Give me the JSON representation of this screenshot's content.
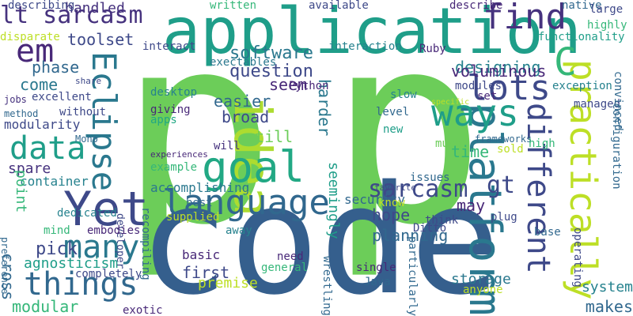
{
  "words": [
    {
      "text": "p",
      "color": "#6ccd59"
    },
    {
      "text": "p",
      "color": "#6ccd59"
    },
    {
      "text": "code",
      "color": "#355f8d"
    },
    {
      "text": "application",
      "color": "#1f9e89"
    },
    {
      "text": "platform",
      "color": "#2a788e"
    },
    {
      "text": "idea",
      "color": "#addc30"
    },
    {
      "text": "Eclipse",
      "color": "#2a788e"
    },
    {
      "text": "practically",
      "color": "#bddf26"
    },
    {
      "text": "different",
      "color": "#3e4989"
    },
    {
      "text": "language",
      "color": "#31688e"
    },
    {
      "text": "Yet",
      "color": "#3e4989"
    },
    {
      "text": "goal",
      "color": "#22a884"
    },
    {
      "text": "C",
      "color": "#35b779"
    },
    {
      "text": "lots",
      "color": "#3e4989"
    },
    {
      "text": "ways",
      "color": "#1f9e89"
    },
    {
      "text": "find",
      "color": "#46327e"
    },
    {
      "text": "em",
      "color": "#482878"
    },
    {
      "text": "data",
      "color": "#1f9e89"
    },
    {
      "text": "things",
      "color": "#31688e"
    },
    {
      "text": "many",
      "color": "#2a788e"
    },
    {
      "text": "sarcasm",
      "color": "#3e4989"
    },
    {
      "text": "gt",
      "color": "#3e4989"
    },
    {
      "text": "lt sarcasm",
      "color": "#46327e"
    },
    {
      "text": "software",
      "color": "#2a788e"
    },
    {
      "text": "question",
      "color": "#3e4989"
    },
    {
      "text": "seem",
      "color": "#482878"
    },
    {
      "text": "easier",
      "color": "#31688e"
    },
    {
      "text": "broad",
      "color": "#3e4989"
    },
    {
      "text": "still",
      "color": "#6ccd59"
    },
    {
      "text": "harder",
      "color": "#2a788e"
    },
    {
      "text": "designing",
      "color": "#26828e"
    },
    {
      "text": "voluminous",
      "color": "#482878"
    },
    {
      "text": "time",
      "color": "#35b779"
    },
    {
      "text": "toolset",
      "color": "#3e4989"
    },
    {
      "text": "phase",
      "color": "#31688e"
    },
    {
      "text": "come",
      "color": "#2a788e"
    },
    {
      "text": "modularity",
      "color": "#3e4989"
    },
    {
      "text": "spare",
      "color": "#46327e"
    },
    {
      "text": "container",
      "color": "#26828e"
    },
    {
      "text": "point",
      "color": "#35b779"
    },
    {
      "text": "pick",
      "color": "#3e4989"
    },
    {
      "text": "agnosticism",
      "color": "#1f9e89"
    },
    {
      "text": "cross",
      "color": "#31688e"
    },
    {
      "text": "modular",
      "color": "#35b779"
    },
    {
      "text": "accomplishing",
      "color": "#2a788e"
    },
    {
      "text": "seemingly",
      "color": "#1f9e89"
    },
    {
      "text": "may",
      "color": "#482878"
    },
    {
      "text": "hope",
      "color": "#3e4989"
    },
    {
      "text": "planning",
      "color": "#31688e"
    },
    {
      "text": "first",
      "color": "#3e4989"
    },
    {
      "text": "premise",
      "color": "#bddf26"
    },
    {
      "text": "basic",
      "color": "#482878"
    },
    {
      "text": "storage",
      "color": "#2a788e"
    },
    {
      "text": "makes",
      "color": "#31688e"
    },
    {
      "text": "system",
      "color": "#26828e"
    },
    {
      "text": "security",
      "color": "#31688e"
    },
    {
      "text": "handled",
      "color": "#46327e"
    },
    {
      "text": "describing",
      "color": "#3e4989"
    },
    {
      "text": "written",
      "color": "#35b779"
    },
    {
      "text": "available",
      "color": "#3e4989"
    },
    {
      "text": "describe",
      "color": "#482878"
    },
    {
      "text": "native",
      "color": "#31688e"
    },
    {
      "text": "large",
      "color": "#3e4989"
    },
    {
      "text": "highly",
      "color": "#35b779"
    },
    {
      "text": "functionality",
      "color": "#1f9e89"
    },
    {
      "text": "disparate",
      "color": "#bddf26"
    },
    {
      "text": "interact",
      "color": "#3e4989"
    },
    {
      "text": "interaction",
      "color": "#26828e"
    },
    {
      "text": "Ruby",
      "color": "#482878"
    },
    {
      "text": "exectables",
      "color": "#2a788e"
    },
    {
      "text": "share",
      "color": "#3e4989"
    },
    {
      "text": "desktop",
      "color": "#26828e"
    },
    {
      "text": "jobs",
      "color": "#46327e"
    },
    {
      "text": "excellent",
      "color": "#3e4989"
    },
    {
      "text": "method",
      "color": "#31688e"
    },
    {
      "text": "without",
      "color": "#3e4989"
    },
    {
      "text": "Mono",
      "color": "#31688e"
    },
    {
      "text": "giving",
      "color": "#482878"
    },
    {
      "text": "apps",
      "color": "#22a884"
    },
    {
      "text": "Python",
      "color": "#482878"
    },
    {
      "text": "slow",
      "color": "#26828e"
    },
    {
      "text": "level",
      "color": "#31688e"
    },
    {
      "text": "new",
      "color": "#1f9e89"
    },
    {
      "text": "modules",
      "color": "#3e4989"
    },
    {
      "text": "set",
      "color": "#482878"
    },
    {
      "text": "specific",
      "color": "#bddf26"
    },
    {
      "text": "exception",
      "color": "#26828e"
    },
    {
      "text": "managed",
      "color": "#3e4989"
    },
    {
      "text": "convinced",
      "color": "#31688e"
    },
    {
      "text": "configuration",
      "color": "#31688e"
    },
    {
      "text": "frameworks",
      "color": "#31688e"
    },
    {
      "text": "much",
      "color": "#6ccd59"
    },
    {
      "text": "sold",
      "color": "#bddf26"
    },
    {
      "text": "high",
      "color": "#35b779"
    },
    {
      "text": "will",
      "color": "#46327e"
    },
    {
      "text": "experiences",
      "color": "#482878"
    },
    {
      "text": "developer",
      "color": "#3e4989"
    },
    {
      "text": "example",
      "color": "#35b779"
    },
    {
      "text": "best",
      "color": "#31688e"
    },
    {
      "text": "issues",
      "color": "#31688e"
    },
    {
      "text": "favorite",
      "color": "#3e4989"
    },
    {
      "text": "know",
      "color": "#bddf26"
    },
    {
      "text": "think",
      "color": "#3e4989"
    },
    {
      "text": "plug",
      "color": "#3e4989"
    },
    {
      "text": "base",
      "color": "#31688e"
    },
    {
      "text": "preference",
      "color": "#31688e"
    },
    {
      "text": "dedicated",
      "color": "#26828e"
    },
    {
      "text": "supplied",
      "color": "#bddf26"
    },
    {
      "text": "recompiling",
      "color": "#31688e"
    },
    {
      "text": "mind",
      "color": "#35b779"
    },
    {
      "text": "embodies",
      "color": "#482878"
    },
    {
      "text": "away",
      "color": "#26828e"
    },
    {
      "text": "Ditto",
      "color": "#3e4989"
    },
    {
      "text": "operating",
      "color": "#3e4989"
    },
    {
      "text": "completely",
      "color": "#3e4989"
    },
    {
      "text": "need",
      "color": "#482878"
    },
    {
      "text": "general",
      "color": "#35b779"
    },
    {
      "text": "single",
      "color": "#482878"
    },
    {
      "text": "Java",
      "color": "#31688e"
    },
    {
      "text": "particularly",
      "color": "#31688e"
    },
    {
      "text": "anyone",
      "color": "#bddf26"
    },
    {
      "text": "wrestling",
      "color": "#31688e"
    },
    {
      "text": "exotic",
      "color": "#482878"
    }
  ]
}
